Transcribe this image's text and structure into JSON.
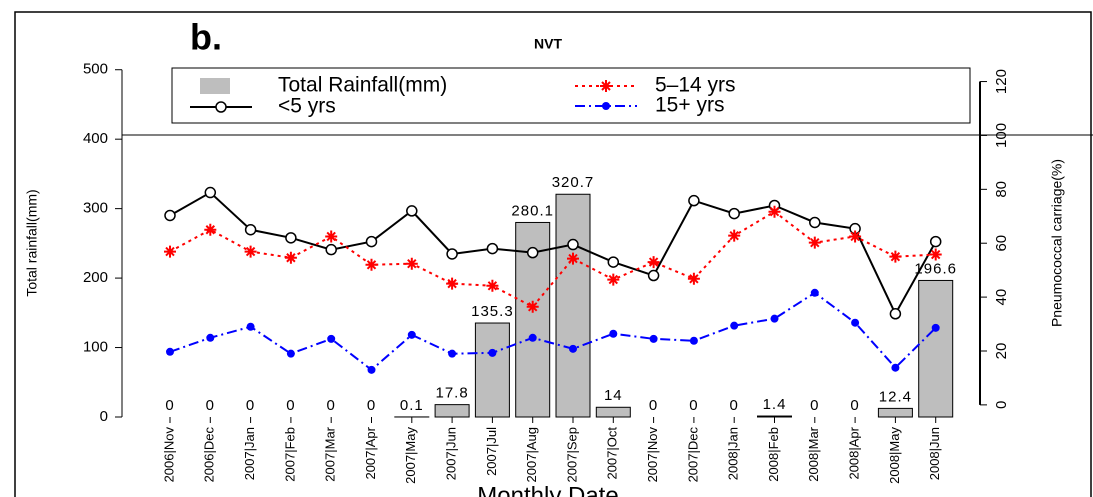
{
  "chart_data": {
    "type": "combo",
    "panel_label": "b.",
    "title": "NVT",
    "ylabel": "Total rainfall(mm)",
    "y2label": "Pneumococcal carriage(%)",
    "xlabel": "Monthly Date",
    "categories": [
      "2006|Nov",
      "2006|Dec",
      "2007|Jan",
      "2007|Feb",
      "2007|Mar",
      "2007|Apr",
      "2007|May",
      "2007|Jun",
      "2007|Jul",
      "2007|Aug",
      "2007|Sep",
      "2007|Oct",
      "2007|Nov",
      "2007|Dec",
      "2008|Jan",
      "2008|Feb",
      "2008|Mar",
      "2008|Apr",
      "2008|May",
      "2008|Jun"
    ],
    "ylim": [
      0,
      514
    ],
    "yticks": [
      0,
      100,
      200,
      300,
      400,
      500
    ],
    "y2lim": [
      -4.5,
      128
    ],
    "y2ticks": [
      0,
      20,
      40,
      60,
      80,
      100,
      120
    ],
    "series": [
      {
        "name": "Total Rainfall(mm)",
        "kind": "bar",
        "color": "#bebebe",
        "axis": "y",
        "values": [
          0,
          0,
          0,
          0,
          0,
          0,
          0.1,
          17.8,
          135.3,
          280.1,
          320.7,
          14,
          0,
          0,
          0,
          1.4,
          0,
          0,
          12.4,
          196.6
        ]
      },
      {
        "name": "<5 yrs",
        "kind": "line",
        "color": "#000000",
        "marker": "circle",
        "axis": "y2",
        "values": [
          70.3,
          78.8,
          65,
          62,
          57.6,
          60.6,
          72,
          56,
          58,
          56.5,
          59.5,
          53,
          48,
          75.8,
          71,
          74,
          67.7,
          65.4,
          33.8,
          60.6
        ]
      },
      {
        "name": "5–14 yrs",
        "kind": "line",
        "color": "#ff0000",
        "marker": "asterisk",
        "axis": "y2",
        "values": [
          56.9,
          65,
          56.9,
          54.6,
          62.5,
          52,
          52.4,
          45,
          44.2,
          36.4,
          54.3,
          46.5,
          53,
          46.8,
          62.8,
          71.7,
          60.2,
          62.5,
          55,
          55.8
        ]
      },
      {
        "name": "15+ yrs",
        "kind": "line",
        "color": "#0000ff",
        "marker": "dot",
        "axis": "y2",
        "values": [
          19.7,
          24.9,
          29,
          19,
          24.5,
          13,
          26,
          19,
          19.3,
          24.9,
          20.8,
          26.4,
          24.5,
          23.8,
          29.4,
          32,
          41.6,
          30.5,
          13.8,
          28.6
        ]
      }
    ]
  }
}
